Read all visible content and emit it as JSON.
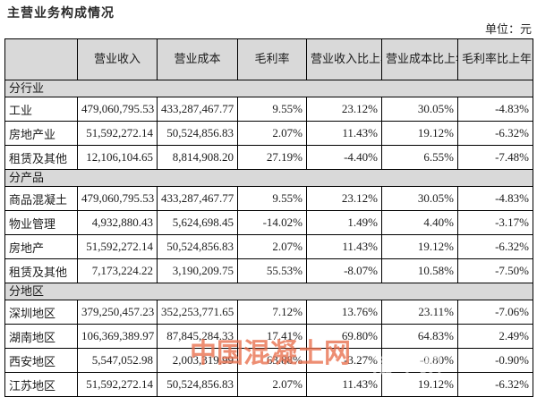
{
  "page": {
    "title": "主营业务构成情况",
    "unit_label": "单位：元"
  },
  "table": {
    "headers": [
      "",
      "营业收入",
      "营业成本",
      "毛利率",
      "营业收入比上年同期增减",
      "营业成本比上年同期增减",
      "毛利率比上年同期增减"
    ],
    "sections": [
      {
        "label": "分行业",
        "rows": [
          {
            "name": "工业",
            "revenue": "479,060,795.53",
            "cost": "433,287,467.77",
            "margin": "9.55%",
            "revenue_yoy": "23.12%",
            "cost_yoy": "30.05%",
            "margin_yoy": "-4.83%"
          },
          {
            "name": "房地产业",
            "revenue": "51,592,272.14",
            "cost": "50,524,856.83",
            "margin": "2.07%",
            "revenue_yoy": "11.43%",
            "cost_yoy": "19.12%",
            "margin_yoy": "-6.32%"
          },
          {
            "name": "租赁及其他",
            "revenue": "12,106,104.65",
            "cost": "8,814,908.20",
            "margin": "27.19%",
            "revenue_yoy": "-4.40%",
            "cost_yoy": "6.55%",
            "margin_yoy": "-7.48%"
          }
        ]
      },
      {
        "label": "分产品",
        "rows": [
          {
            "name": "商品混凝土",
            "revenue": "479,060,795.53",
            "cost": "433,287,467.77",
            "margin": "9.55%",
            "revenue_yoy": "23.12%",
            "cost_yoy": "30.05%",
            "margin_yoy": "-4.83%"
          },
          {
            "name": "物业管理",
            "revenue": "4,932,880.43",
            "cost": "5,624,698.45",
            "margin": "-14.02%",
            "revenue_yoy": "1.49%",
            "cost_yoy": "4.40%",
            "margin_yoy": "-3.17%"
          },
          {
            "name": "房地产",
            "revenue": "51,592,272.14",
            "cost": "50,524,856.83",
            "margin": "2.07%",
            "revenue_yoy": "11.43%",
            "cost_yoy": "19.12%",
            "margin_yoy": "-6.32%"
          },
          {
            "name": "租赁及其他",
            "revenue": "7,173,224.22",
            "cost": "3,190,209.75",
            "margin": "55.53%",
            "revenue_yoy": "-8.07%",
            "cost_yoy": "10.58%",
            "margin_yoy": "-7.50%"
          }
        ]
      },
      {
        "label": "分地区",
        "rows": [
          {
            "name": "深圳地区",
            "revenue": "379,250,457.23",
            "cost": "352,253,771.65",
            "margin": "7.12%",
            "revenue_yoy": "13.76%",
            "cost_yoy": "23.11%",
            "margin_yoy": "-7.06%"
          },
          {
            "name": "湖南地区",
            "revenue": "106,369,389.97",
            "cost": "87,845,284.33",
            "margin": "17.41%",
            "revenue_yoy": "69.80%",
            "cost_yoy": "64.83%",
            "margin_yoy": "2.49%"
          },
          {
            "name": "西安地区",
            "revenue": "5,547,052.98",
            "cost": "2,003,319.99",
            "margin": "63.88%",
            "revenue_yoy": "-3.27%",
            "cost_yoy": "-0.80%",
            "margin_yoy": "-0.90%"
          },
          {
            "name": "江苏地区",
            "revenue": "51,592,272.14",
            "cost": "50,524,856.83",
            "margin": "2.07%",
            "revenue_yoy": "11.43%",
            "cost_yoy": "19.12%",
            "margin_yoy": "-6.32%"
          }
        ]
      }
    ]
  },
  "watermark": {
    "text": "中国混凝土网",
    "ghost_text": "凝土网"
  },
  "colors": {
    "section_bg": "#d9d9d9",
    "border": "#000000",
    "watermark": "rgba(232,110,75,0.78)"
  }
}
